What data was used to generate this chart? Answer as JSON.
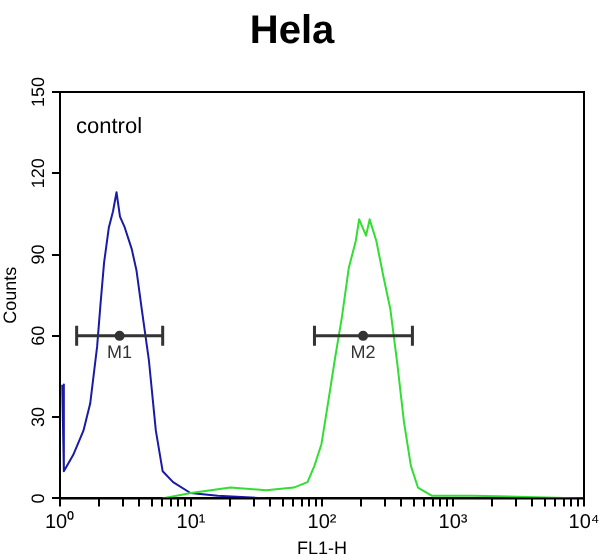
{
  "chart_data": {
    "type": "line",
    "title": "Hela",
    "xlabel": "FL1-H",
    "ylabel": "Counts",
    "log": "x",
    "grid": false,
    "legend": false,
    "marker": "none",
    "line_style": "solid",
    "annotations": [
      "control"
    ],
    "xlim": [
      1,
      10000
    ],
    "ylim": [
      0,
      150
    ],
    "xticks": [
      {
        "value": 1,
        "label": "10⁰"
      },
      {
        "value": 2,
        "label": null
      },
      {
        "value": 3,
        "label": null
      },
      {
        "value": 4,
        "label": null
      },
      {
        "value": 5,
        "label": null
      },
      {
        "value": 6,
        "label": null
      },
      {
        "value": 7,
        "label": null
      },
      {
        "value": 8,
        "label": null
      },
      {
        "value": 9,
        "label": null
      },
      {
        "value": 10,
        "label": "10¹"
      },
      {
        "value": 20,
        "label": null
      },
      {
        "value": 30,
        "label": null
      },
      {
        "value": 40,
        "label": null
      },
      {
        "value": 50,
        "label": null
      },
      {
        "value": 60,
        "label": null
      },
      {
        "value": 70,
        "label": null
      },
      {
        "value": 80,
        "label": null
      },
      {
        "value": 90,
        "label": null
      },
      {
        "value": 100,
        "label": "10²"
      },
      {
        "value": 200,
        "label": null
      },
      {
        "value": 300,
        "label": null
      },
      {
        "value": 400,
        "label": null
      },
      {
        "value": 500,
        "label": null
      },
      {
        "value": 600,
        "label": null
      },
      {
        "value": 700,
        "label": null
      },
      {
        "value": 800,
        "label": null
      },
      {
        "value": 900,
        "label": null
      },
      {
        "value": 1000,
        "label": "10³"
      },
      {
        "value": 2000,
        "label": null
      },
      {
        "value": 3000,
        "label": null
      },
      {
        "value": 4000,
        "label": null
      },
      {
        "value": 5000,
        "label": null
      },
      {
        "value": 6000,
        "label": null
      },
      {
        "value": 7000,
        "label": null
      },
      {
        "value": 8000,
        "label": null
      },
      {
        "value": 9000,
        "label": null
      },
      {
        "value": 10000,
        "label": "10⁴"
      }
    ],
    "yticks": [
      0,
      30,
      60,
      90,
      120,
      150
    ],
    "series": [
      {
        "color": "#33dd33",
        "x": [
          6,
          10,
          20,
          37.5,
          60.8,
          77.5,
          87.5,
          99,
          111,
          126,
          142,
          160,
          181,
          192,
          217,
          231,
          260,
          294,
          332,
          375,
          423,
          477,
          540,
          687,
          1422,
          10000
        ],
        "values": [
          0,
          2,
          4,
          3,
          4,
          6,
          12,
          20,
          35,
          52,
          67,
          85,
          95,
          103,
          97,
          103,
          95,
          82,
          70,
          50,
          28,
          12,
          4,
          1,
          1,
          0
        ]
      },
      {
        "color": "#1a1aa8",
        "x": [
          1.04,
          1.07,
          1.26,
          1.51,
          1.7,
          1.92,
          2.04,
          2.17,
          2.36,
          2.54,
          2.7,
          2.87,
          3.12,
          3.53,
          3.84,
          4.23,
          4.77,
          5.39,
          6.08,
          7.3,
          9.9,
          16,
          37.5
        ],
        "values": [
          42,
          10,
          16,
          25,
          35,
          56,
          72,
          87,
          100,
          106,
          113,
          104,
          100,
          92,
          84,
          69,
          51,
          25,
          10,
          6,
          2,
          1,
          0
        ]
      },
      {
        "name": "M1",
        "type": "scatter",
        "marker": "circle",
        "color": "#333333",
        "x": [
          2.85
        ],
        "values": [
          60
        ],
        "xerrors": [
          [
            1.34,
            6.08
          ]
        ]
      },
      {
        "name": "M2",
        "type": "scatter",
        "marker": "circle",
        "color": "#333333",
        "x": [
          206
        ],
        "values": [
          60
        ],
        "xerrors": [
          [
            87.6,
            490
          ]
        ]
      }
    ]
  }
}
